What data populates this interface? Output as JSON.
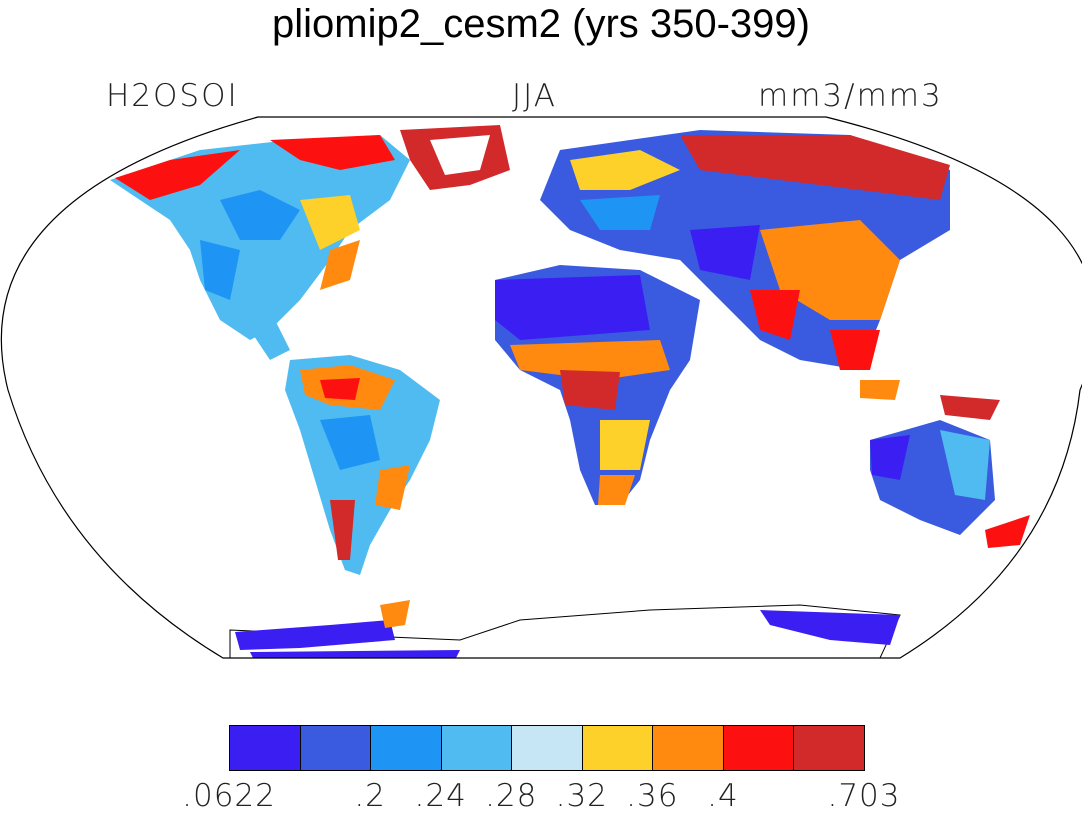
{
  "title": "pliomip2_cesm2 (yrs 350-399)",
  "variable": "H2OSOI",
  "season": "JJA",
  "units": "mm3/mm3",
  "colorbar": {
    "colors": [
      "#3b1ff2",
      "#3a5be0",
      "#1e95f5",
      "#4fbbf0",
      "#c6e6f5",
      "#fdd02a",
      "#ff8a0f",
      "#fd1010",
      "#d22a2a"
    ],
    "tick_labels": [
      ".0622",
      ".2",
      ".24",
      ".28",
      ".32",
      ".36",
      ".4",
      ".703"
    ],
    "boundaries": [
      0.0622,
      0.16,
      0.2,
      0.24,
      0.28,
      0.32,
      0.36,
      0.4,
      0.5,
      0.703
    ]
  },
  "map": {
    "projection": "robinson",
    "land_fill": "soil moisture field",
    "ocean_fill": "#ffffff"
  }
}
